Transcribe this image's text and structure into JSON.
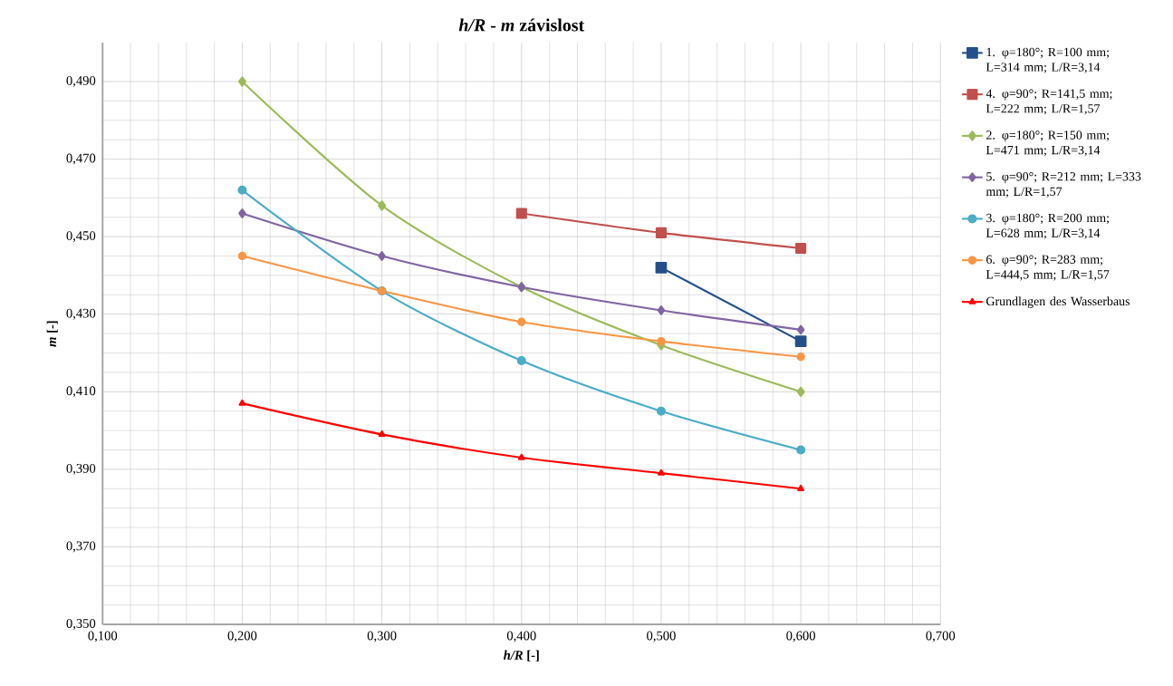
{
  "chart_data": {
    "type": "line",
    "title": "*h/R* - *m* závislost",
    "xlabel": "*h/R* [-]",
    "ylabel": "*m* [-]",
    "xlim": [
      0.1,
      0.7
    ],
    "ylim": [
      0.35,
      0.5
    ],
    "xticks": [
      {
        "value": 0.1,
        "label": "0,100"
      },
      {
        "value": 0.2,
        "label": "0,200"
      },
      {
        "value": 0.3,
        "label": "0,300"
      },
      {
        "value": 0.4,
        "label": "0,400"
      },
      {
        "value": 0.5,
        "label": "0,500"
      },
      {
        "value": 0.6,
        "label": "0,600"
      },
      {
        "value": 0.7,
        "label": "0,700"
      }
    ],
    "yticks": [
      {
        "value": 0.35,
        "label": "0,350"
      },
      {
        "value": 0.37,
        "label": "0,370"
      },
      {
        "value": 0.39,
        "label": "0,390"
      },
      {
        "value": 0.41,
        "label": "0,410"
      },
      {
        "value": 0.43,
        "label": "0,430"
      },
      {
        "value": 0.45,
        "label": "0,450"
      },
      {
        "value": 0.47,
        "label": "0,470"
      },
      {
        "value": 0.49,
        "label": "0,490"
      }
    ],
    "grid": true,
    "legend": "right",
    "line_style": "solid",
    "series": [
      {
        "name": "1. φ=180°; R=100 mm; L=314 mm;  L/R=3,14",
        "color": "#254f8a",
        "marker": "square",
        "x": [
          0.5,
          0.6
        ],
        "values": [
          0.442,
          0.423
        ]
      },
      {
        "name": "4. φ=90°; R=141,5 mm; L=222 mm;  L/R=1,57",
        "color": "#c0504d",
        "marker": "square",
        "x": [
          0.4,
          0.5,
          0.6
        ],
        "values": [
          0.456,
          0.451,
          0.447
        ]
      },
      {
        "name": "2. φ=180°; R=150 mm; L=471 mm;  L/R=3,14",
        "color": "#9bbb59",
        "marker": "diamond",
        "x": [
          0.2,
          0.3,
          0.4,
          0.5,
          0.6
        ],
        "values": [
          0.49,
          0.458,
          0.437,
          0.422,
          0.41
        ]
      },
      {
        "name": "5. φ=90°; R=212 mm; L=333 mm;  L/R=1,57",
        "color": "#8064a2",
        "marker": "diamond",
        "x": [
          0.2,
          0.3,
          0.4,
          0.5,
          0.6
        ],
        "values": [
          0.456,
          0.445,
          0.437,
          0.431,
          0.426
        ]
      },
      {
        "name": "3. φ=180°; R=200 mm; L=628 mm;  L/R=3,14",
        "color": "#4bacc6",
        "marker": "circle",
        "x": [
          0.2,
          0.3,
          0.4,
          0.5,
          0.6
        ],
        "values": [
          0.462,
          0.436,
          0.418,
          0.405,
          0.395
        ]
      },
      {
        "name": "6. φ=90°; R=283 mm; L=444,5 mm;  L/R=1,57",
        "color": "#f79646",
        "marker": "circle",
        "x": [
          0.2,
          0.3,
          0.4,
          0.5,
          0.6
        ],
        "values": [
          0.445,
          0.436,
          0.428,
          0.423,
          0.419
        ]
      },
      {
        "name": "Grundlagen des Wasserbaus",
        "color": "#ff0000",
        "marker": "triangle",
        "x": [
          0.2,
          0.3,
          0.4,
          0.5,
          0.6
        ],
        "values": [
          0.407,
          0.399,
          0.393,
          0.389,
          0.385
        ]
      }
    ]
  }
}
